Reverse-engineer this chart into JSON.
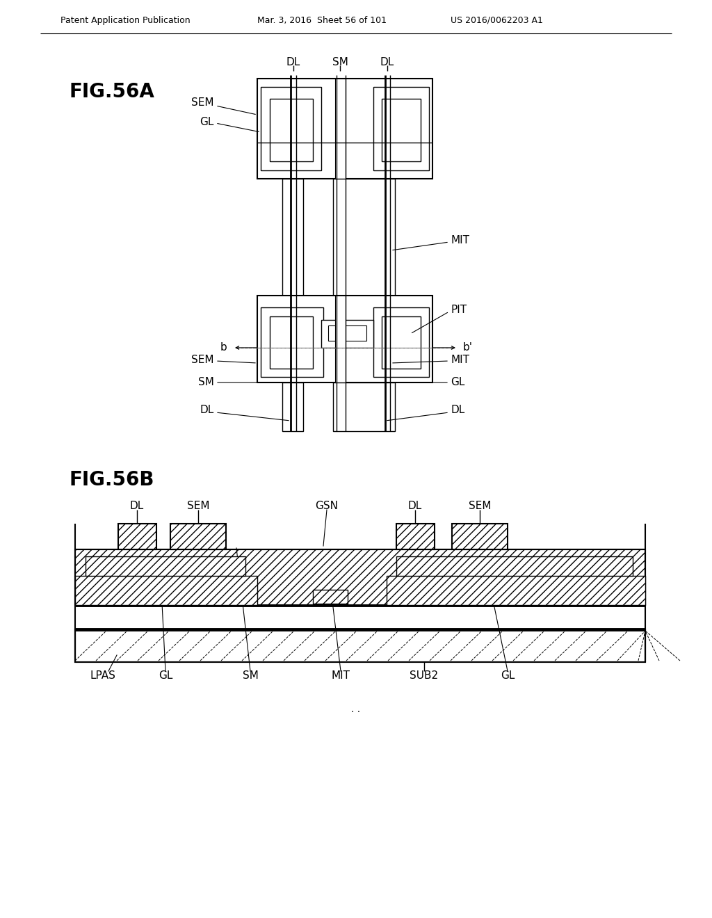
{
  "header_left": "Patent Application Publication",
  "header_mid": "Mar. 3, 2016  Sheet 56 of 101",
  "header_right": "US 2016/0062203 A1",
  "fig_a_label": "FIG.56A",
  "fig_b_label": "FIG.56B",
  "bg_color": "#ffffff",
  "line_color": "#000000"
}
